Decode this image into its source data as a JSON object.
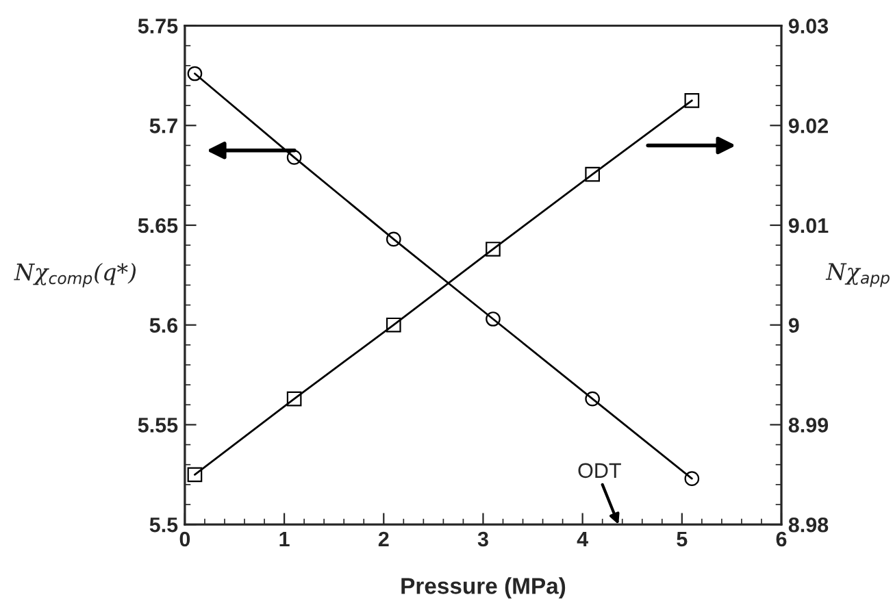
{
  "chart_data": {
    "type": "line",
    "xlabel": "Pressure (MPa)",
    "ylabel": "Nχ$_{comp}$(q*)",
    "y2label": "Nχ$_{app}$",
    "x": [
      0.1,
      1.1,
      2.1,
      3.1,
      4.1,
      5.1
    ],
    "series": [
      {
        "color": "#000000",
        "marker": "circle",
        "values": [
          5.726,
          5.684,
          5.643,
          5.603,
          5.563,
          5.523
        ]
      },
      {
        "color": "#000000",
        "marker": "square",
        "axis": "y2",
        "values": [
          8.985,
          8.9926,
          9.0,
          9.0076,
          9.0151,
          9.0225
        ]
      }
    ],
    "xlim": [
      0,
      6
    ],
    "xticks": [
      0,
      1,
      2,
      3,
      4,
      5,
      6
    ],
    "ylim": [
      5.5,
      5.75
    ],
    "yticks": [
      5.5,
      5.55,
      5.6,
      5.65,
      5.7,
      5.75
    ],
    "y2lim": [
      8.98,
      9.03
    ],
    "y2ticks": [
      8.98,
      8.99,
      {
        "value": 9.0,
        "label": "9"
      },
      9.01,
      9.02,
      9.03
    ],
    "line_style": "solid",
    "grid": false,
    "annotations": [
      "ODT"
    ]
  }
}
